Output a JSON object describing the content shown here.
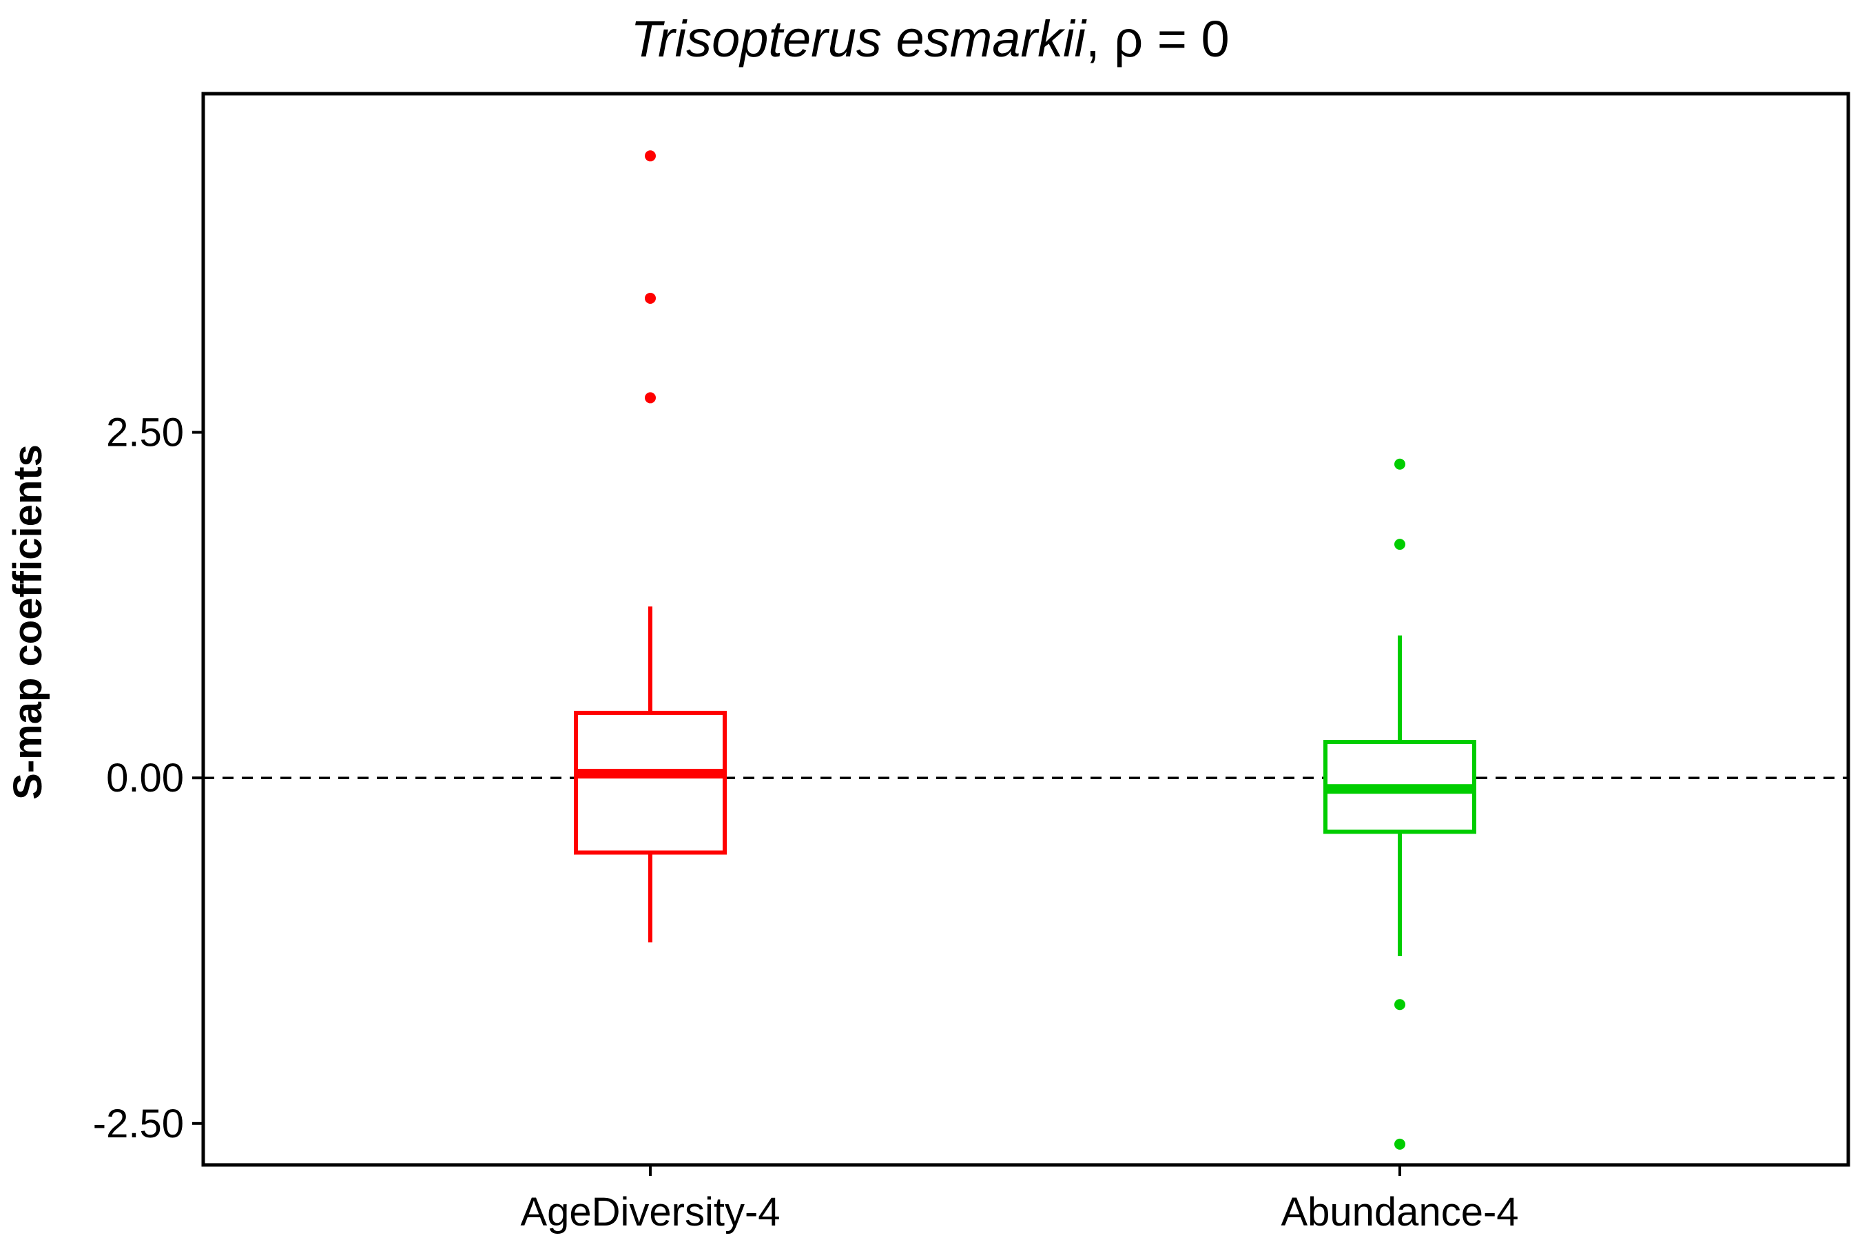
{
  "chart_data": {
    "type": "box",
    "title": {
      "italic": "Trisopterus esmarkii",
      "rest": ", ρ = 0"
    },
    "xlabel": "",
    "ylabel": "S-map coefficients",
    "ylim": [
      -2.8,
      4.95
    ],
    "yticks": [
      -2.5,
      0,
      2.5
    ],
    "ytick_labels": [
      "-2.50",
      "0.00",
      "2.50"
    ],
    "reference_line": {
      "y": 0,
      "style": "dashed",
      "color": "#000000"
    },
    "grid": false,
    "legend": "none",
    "categories": [
      "AgeDiversity-4",
      "Abundance-4"
    ],
    "series": [
      {
        "category": "AgeDiversity-4",
        "color": "#ff0000",
        "whisker_low": -1.19,
        "q1": -0.54,
        "median": 0.03,
        "q3": 0.47,
        "whisker_high": 1.24,
        "outliers": [
          4.5,
          3.47,
          2.75
        ]
      },
      {
        "category": "Abundance-4",
        "color": "#00cd00",
        "whisker_low": -1.29,
        "q1": -0.39,
        "median": -0.08,
        "q3": 0.26,
        "whisker_high": 1.03,
        "outliers": [
          2.27,
          1.69,
          -1.64,
          -2.65
        ]
      }
    ]
  }
}
